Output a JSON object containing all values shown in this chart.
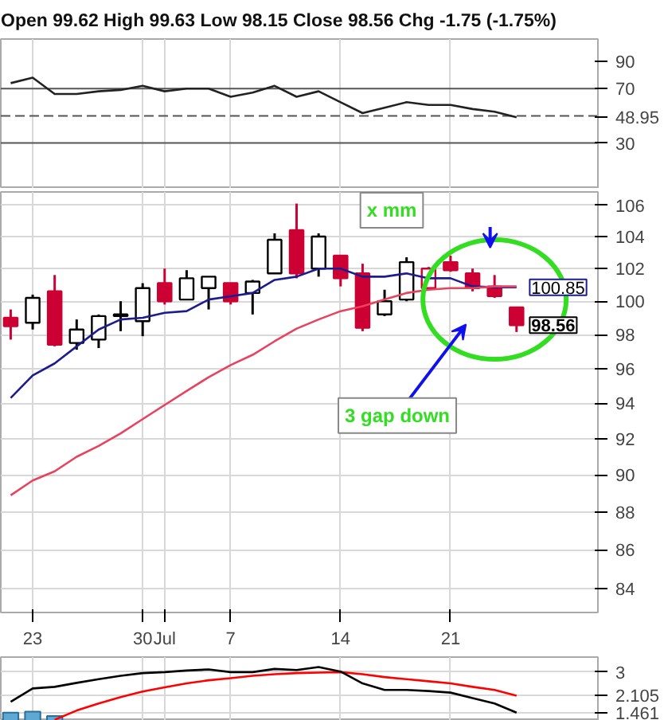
{
  "chart_data": [
    {
      "type": "line",
      "title": "Open 99.62  High 99.63  Low 98.15  Close 98.56  Chg -1.75 (-1.75%)",
      "categories": [
        null,
        null,
        null,
        null,
        null,
        null,
        null,
        null,
        null,
        null,
        null,
        null,
        null,
        null,
        null,
        null,
        null,
        null,
        null,
        null,
        null,
        null,
        null,
        null
      ],
      "series": [
        {
          "color": "#222222",
          "values": [
            74,
            78,
            66,
            66,
            68,
            69,
            72,
            68,
            70,
            70,
            64,
            67,
            72,
            64,
            68,
            60,
            52,
            56,
            60,
            58,
            58,
            55,
            53,
            48.95
          ]
        }
      ],
      "ylim": [
        -3.6,
        106.4
      ],
      "yticks": [
        30,
        48.95,
        70,
        90
      ],
      "grid": "x",
      "tick_labels": "y",
      "ref_lines": [
        {
          "axis": "y",
          "value": 70,
          "color": "#555555",
          "line_style": "solid"
        },
        {
          "axis": "y",
          "value": 30,
          "color": "#555555",
          "line_style": "solid"
        },
        {
          "axis": "y",
          "value": 50,
          "color": "#555555",
          "line_style": "dashed"
        }
      ]
    },
    {
      "type": "candlestick",
      "categories": [
        null,
        "23",
        null,
        null,
        null,
        null,
        "30",
        "Jul",
        null,
        null,
        "7",
        null,
        null,
        null,
        null,
        "14",
        null,
        null,
        null,
        null,
        "21",
        null,
        null,
        null
      ],
      "ohlc": [
        [
          99.0,
          99.5,
          97.7,
          98.5
        ],
        [
          98.7,
          100.4,
          98.3,
          100.2
        ],
        [
          100.6,
          101.6,
          97.3,
          97.4
        ],
        [
          97.5,
          98.9,
          97.1,
          98.3
        ],
        [
          97.7,
          99.2,
          97.2,
          99.1
        ],
        [
          99.1,
          100.0,
          98.2,
          99.2
        ],
        [
          98.8,
          101.1,
          97.9,
          100.8
        ],
        [
          101.1,
          102.0,
          99.8,
          100.0
        ],
        [
          100.1,
          101.9,
          100.1,
          101.4
        ],
        [
          100.8,
          101.5,
          99.5,
          101.5
        ],
        [
          101.1,
          101.1,
          99.8,
          100.0
        ],
        [
          100.5,
          101.3,
          99.2,
          101.2
        ],
        [
          101.7,
          104.2,
          101.7,
          103.8
        ],
        [
          104.4,
          106.1,
          101.4,
          101.7
        ],
        [
          102.0,
          104.2,
          101.5,
          104.0
        ],
        [
          102.8,
          102.8,
          100.9,
          101.4
        ],
        [
          101.7,
          102.3,
          98.2,
          98.4
        ],
        [
          99.2,
          100.7,
          99.1,
          100.0
        ],
        [
          100.1,
          102.7,
          100.0,
          102.4
        ],
        [
          100.8,
          102.1,
          100.8,
          102.0
        ],
        [
          102.4,
          102.8,
          101.8,
          101.9
        ],
        [
          101.7,
          102.0,
          100.6,
          100.8
        ],
        [
          100.9,
          101.6,
          100.2,
          100.31
        ],
        [
          99.62,
          99.63,
          98.15,
          98.56
        ]
      ],
      "colors": [
        "#cc0033",
        "#000000",
        "#cc0033",
        "#000000",
        "#000000",
        "#000000",
        "#000000",
        "#cc0033",
        "#000000",
        "#000000",
        "#cc0033",
        "#000000",
        "#000000",
        "#cc0033",
        "#000000",
        "#cc0033",
        "#cc0033",
        "#000000",
        "#000000",
        "#cc0033",
        "#cc0033",
        "#cc0033",
        "#cc0033",
        "#cc0033"
      ],
      "series": [
        {
          "type": "line",
          "color": "#1c1c8f",
          "values": [
            94.3,
            95.6,
            96.3,
            97.3,
            98.3,
            98.9,
            99.0,
            99.3,
            99.4,
            100.1,
            100.3,
            100.5,
            101.3,
            101.5,
            102.0,
            102.0,
            101.5,
            101.5,
            101.7,
            101.4,
            101.4,
            100.9,
            100.85,
            100.85
          ],
          "value_labels": [
            null,
            null,
            null,
            null,
            null,
            null,
            null,
            null,
            null,
            null,
            null,
            null,
            null,
            null,
            null,
            null,
            null,
            null,
            null,
            null,
            null,
            null,
            null,
            "100.85"
          ]
        },
        {
          "type": "line",
          "color": "#e8435e",
          "values": [
            88.9,
            89.7,
            90.2,
            91.0,
            91.6,
            92.3,
            93.1,
            93.9,
            94.7,
            95.5,
            96.2,
            96.8,
            97.6,
            98.35,
            98.9,
            99.4,
            99.7,
            100.1,
            100.5,
            100.7,
            100.8,
            100.8,
            100.9,
            100.9
          ]
        }
      ],
      "annotations": [
        "x mm",
        "3 gap down",
        {
          "text": "98.56",
          "y": 98.56
        }
      ],
      "ylim": [
        82.8,
        106.85
      ],
      "yticks": [
        84,
        86,
        88,
        90,
        92,
        94,
        96,
        98,
        100,
        102,
        104,
        106
      ],
      "log": "y",
      "grid": true
    },
    {
      "type": "line",
      "categories": [
        null,
        null,
        null,
        null,
        null,
        null,
        null,
        null,
        null,
        null,
        null,
        null,
        null,
        null,
        null,
        null,
        null,
        null,
        null,
        null,
        null,
        null,
        null,
        null
      ],
      "series": [
        {
          "type": "bar",
          "color": "#5fa8d3",
          "values": [
            1.46,
            1.5,
            1.33,
            null,
            null,
            null,
            null,
            null,
            null,
            null,
            null,
            null,
            null,
            null,
            null,
            null,
            null,
            null,
            null,
            null,
            null,
            null,
            null,
            null
          ]
        },
        {
          "color": "#ff0000",
          "values": [
            null,
            null,
            1.19,
            1.54,
            1.81,
            2.05,
            2.26,
            2.42,
            2.57,
            2.69,
            2.77,
            2.86,
            2.92,
            2.96,
            2.98,
            3.0,
            2.92,
            2.81,
            2.73,
            2.65,
            2.57,
            2.44,
            2.32,
            2.105
          ]
        },
        {
          "color": "#000000",
          "values": [
            1.87,
            2.38,
            2.44,
            2.59,
            2.73,
            2.86,
            2.96,
            3.0,
            3.06,
            3.1,
            3.0,
            3.0,
            3.12,
            3.08,
            3.19,
            3.02,
            2.57,
            2.32,
            2.32,
            2.28,
            2.22,
            2.01,
            1.81,
            1.461
          ]
        }
      ],
      "ylim": [
        1.15,
        3.57
      ],
      "yticks": [
        1.461,
        2.105,
        3
      ],
      "grid": true,
      "tick_labels": "y"
    }
  ]
}
